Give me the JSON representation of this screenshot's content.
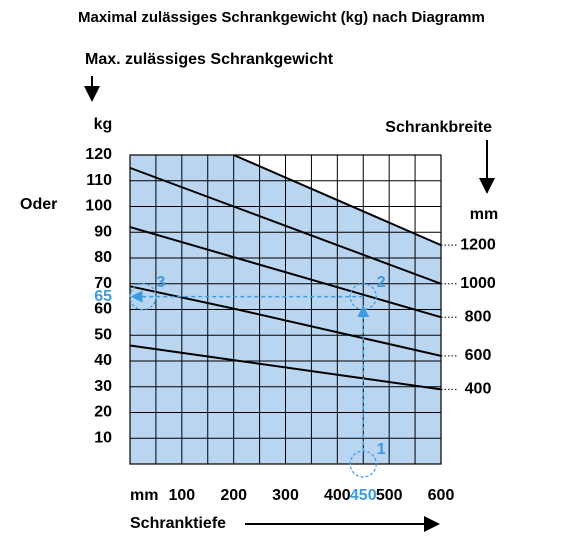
{
  "chart_data": {
    "type": "line",
    "title": "Maximal zulässiges Schrankgewicht (kg) nach Diagramm",
    "y_label": "Max. zulässiges Schrankgewicht",
    "y_unit": "kg",
    "or_label": "Oder",
    "legend_title": "Schrankbreite",
    "legend_unit": "mm",
    "x_unit": "mm",
    "x_label": "Schranktiefe",
    "x": [
      0,
      200,
      600
    ],
    "series": [
      {
        "name": "1200",
        "color": "#000000",
        "values": [
          null,
          120,
          85
        ]
      },
      {
        "name": "1000",
        "color": "#000000",
        "values": [
          115,
          100,
          70
        ]
      },
      {
        "name": "800",
        "color": "#000000",
        "values": [
          92,
          80.33,
          57
        ]
      },
      {
        "name": "600",
        "color": "#000000",
        "values": [
          69,
          60.33,
          42
        ]
      },
      {
        "name": "400",
        "color": "#000000",
        "values": [
          46,
          40.33,
          29
        ]
      }
    ],
    "fill_color": "#b9d5f0",
    "xlim": [
      0,
      600
    ],
    "ylim": [
      0,
      120
    ],
    "xticks": [
      100,
      200,
      300,
      400,
      500,
      600
    ],
    "yticks": [
      10,
      20,
      30,
      40,
      50,
      60,
      70,
      80,
      90,
      100,
      110,
      120
    ],
    "x_gridlines": [
      50,
      100,
      150,
      200,
      250,
      300,
      350,
      400,
      450,
      500,
      550
    ],
    "grid": true,
    "example": {
      "x": 450,
      "y": 65,
      "steps": [
        "1",
        "2",
        "3"
      ],
      "color": "#3d9be0"
    }
  }
}
